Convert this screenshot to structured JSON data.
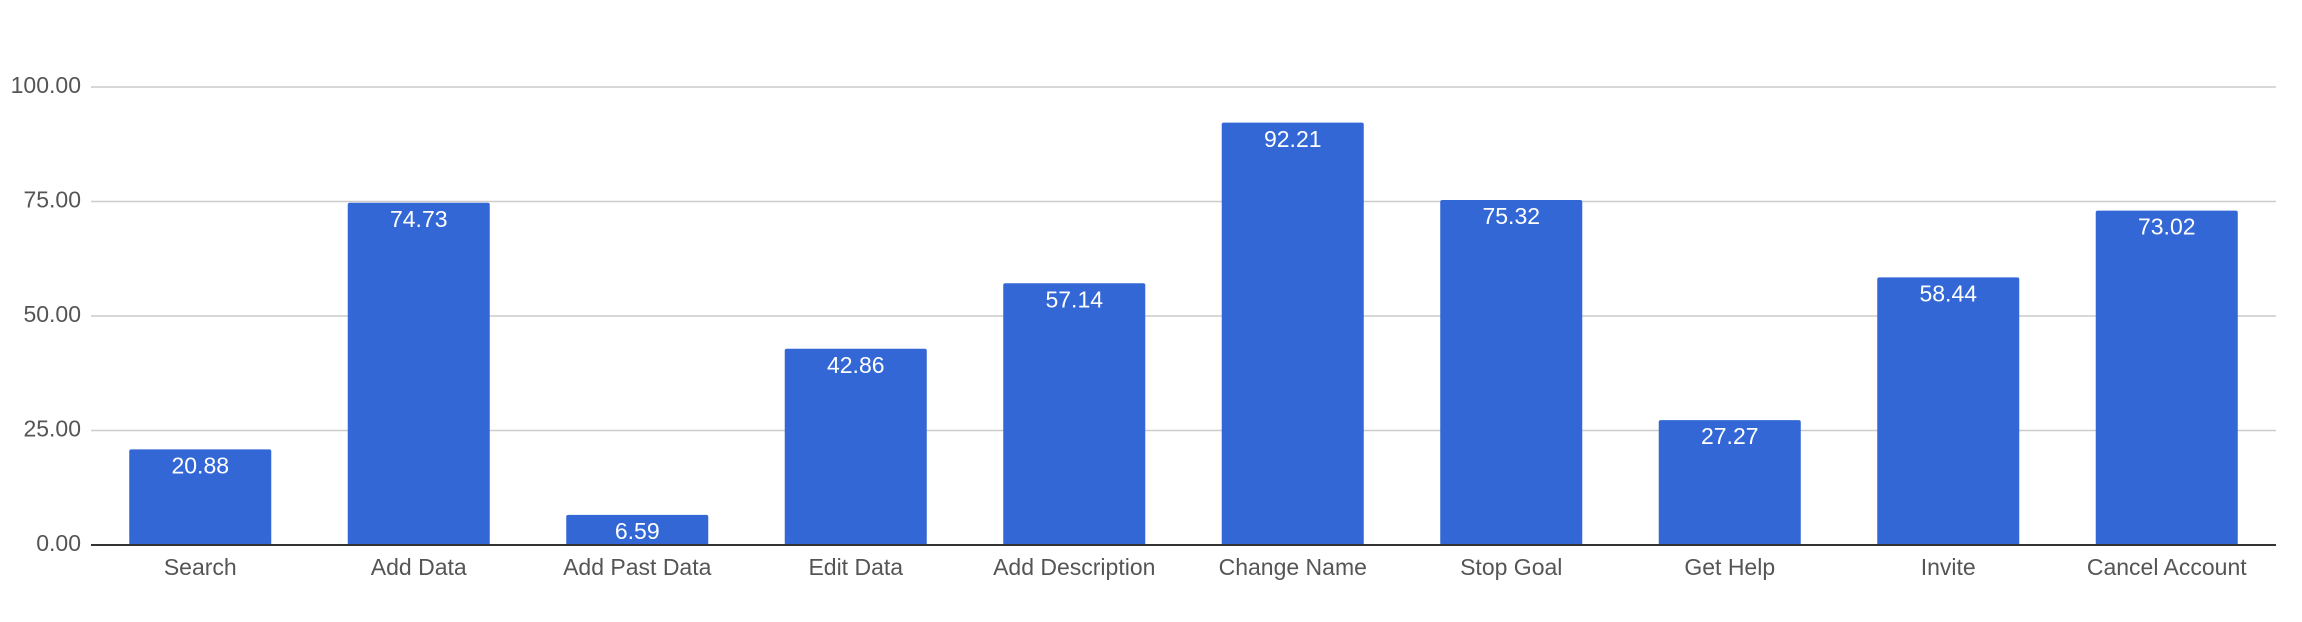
{
  "chart_data": {
    "type": "bar",
    "categories": [
      "Search",
      "Add Data",
      "Add Past Data",
      "Edit Data",
      "Add Description",
      "Change Name",
      "Stop Goal",
      "Get Help",
      "Invite",
      "Cancel Account"
    ],
    "values": [
      20.88,
      74.73,
      6.59,
      42.86,
      57.14,
      92.21,
      75.32,
      27.27,
      58.44,
      73.02
    ],
    "color": "#3367d6",
    "ylim": [
      0,
      100
    ],
    "yticks": [
      {
        "value": 0,
        "label": "0.00"
      },
      {
        "value": 25,
        "label": "25.00"
      },
      {
        "value": 50,
        "label": "50.00"
      },
      {
        "value": 75,
        "label": "75.00"
      },
      {
        "value": 100,
        "label": "100.00"
      }
    ],
    "grid": true
  }
}
